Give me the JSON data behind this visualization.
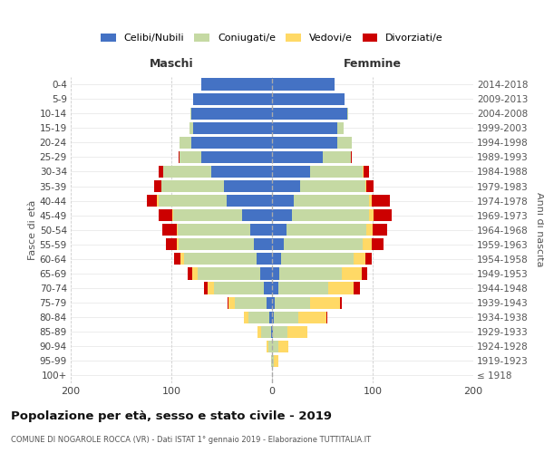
{
  "age_groups": [
    "100+",
    "95-99",
    "90-94",
    "85-89",
    "80-84",
    "75-79",
    "70-74",
    "65-69",
    "60-64",
    "55-59",
    "50-54",
    "45-49",
    "40-44",
    "35-39",
    "30-34",
    "25-29",
    "20-24",
    "15-19",
    "10-14",
    "5-9",
    "0-4"
  ],
  "birth_years": [
    "≤ 1918",
    "1919-1923",
    "1924-1928",
    "1929-1933",
    "1934-1938",
    "1939-1943",
    "1944-1948",
    "1949-1953",
    "1954-1958",
    "1959-1963",
    "1964-1968",
    "1969-1973",
    "1974-1978",
    "1979-1983",
    "1984-1988",
    "1989-1993",
    "1994-1998",
    "1999-2003",
    "2004-2008",
    "2009-2013",
    "2014-2018"
  ],
  "m_cel": [
    0,
    0,
    0,
    1,
    3,
    5,
    8,
    12,
    15,
    18,
    22,
    30,
    45,
    48,
    60,
    70,
    80,
    78,
    80,
    78,
    70
  ],
  "m_con": [
    0,
    1,
    4,
    10,
    20,
    32,
    50,
    62,
    72,
    75,
    72,
    68,
    68,
    62,
    48,
    22,
    12,
    4,
    1,
    0,
    0
  ],
  "m_ved": [
    0,
    0,
    1,
    3,
    5,
    6,
    6,
    5,
    4,
    2,
    1,
    1,
    1,
    0,
    0,
    0,
    0,
    0,
    0,
    0,
    0
  ],
  "m_div": [
    0,
    0,
    0,
    0,
    0,
    1,
    4,
    5,
    6,
    10,
    14,
    14,
    10,
    7,
    5,
    1,
    0,
    0,
    0,
    0,
    0
  ],
  "f_nub": [
    0,
    0,
    0,
    1,
    2,
    3,
    6,
    7,
    9,
    12,
    14,
    20,
    22,
    28,
    38,
    50,
    65,
    65,
    75,
    72,
    62
  ],
  "f_con": [
    0,
    2,
    6,
    14,
    24,
    35,
    50,
    62,
    72,
    78,
    80,
    76,
    74,
    65,
    52,
    28,
    14,
    6,
    1,
    0,
    0
  ],
  "f_ved": [
    0,
    4,
    10,
    20,
    28,
    30,
    25,
    20,
    12,
    9,
    6,
    5,
    3,
    1,
    1,
    0,
    0,
    0,
    0,
    0,
    0
  ],
  "f_div": [
    0,
    0,
    0,
    0,
    1,
    1,
    6,
    6,
    6,
    12,
    14,
    18,
    18,
    7,
    5,
    1,
    0,
    0,
    0,
    0,
    0
  ],
  "colors": {
    "celibi": "#4472c4",
    "coniugati": "#c5d9a3",
    "vedovi": "#ffd966",
    "divorziati": "#cc0000"
  },
  "legend_labels": [
    "Celibi/Nubili",
    "Coniugati/e",
    "Vedovi/e",
    "Divorziati/e"
  ],
  "xlim": 200,
  "title": "Popolazione per età, sesso e stato civile - 2019",
  "subtitle": "COMUNE DI NOGAROLE ROCCA (VR) - Dati ISTAT 1° gennaio 2019 - Elaborazione TUTTITALIA.IT",
  "ylabel_left": "Fasce di età",
  "ylabel_right": "Anni di nascita",
  "xlabel_maschi": "Maschi",
  "xlabel_femmine": "Femmine",
  "bg_color": "#ffffff",
  "grid_color": "#cccccc"
}
